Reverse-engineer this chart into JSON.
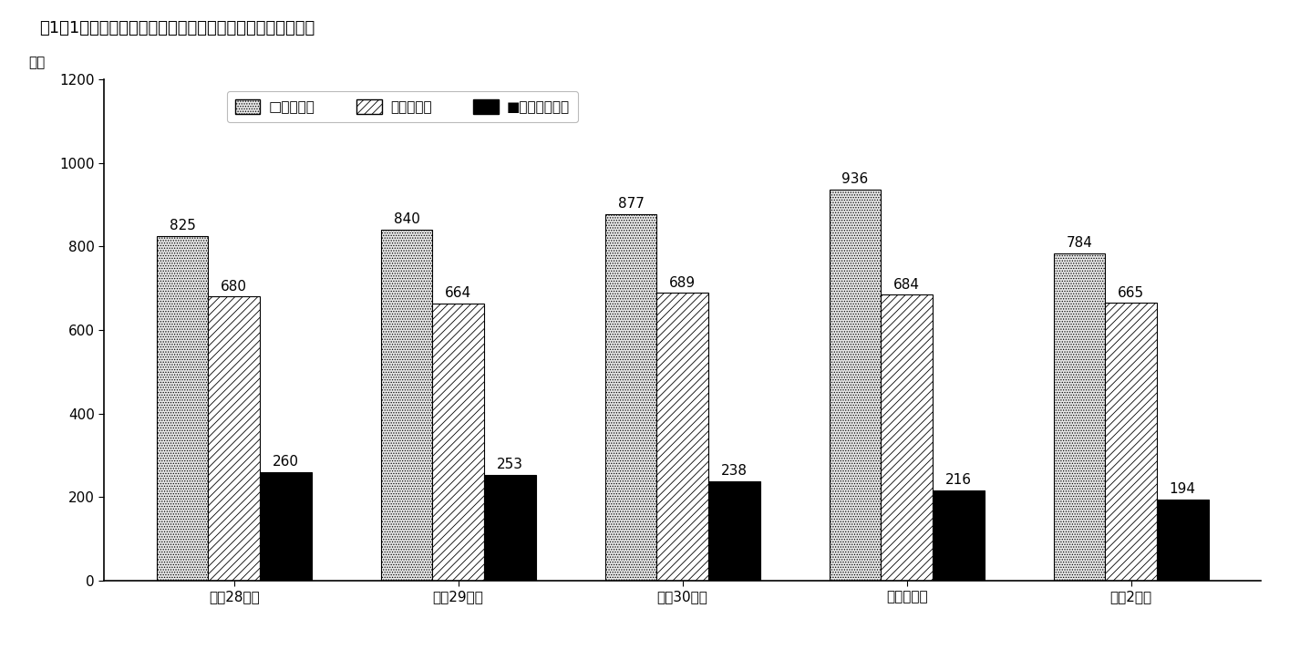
{
  "title": "図1－1　脳・心臓疾患の請求、決定及び支給決定件数の推移",
  "ylabel": "（件",
  "categories": [
    "平成28年度",
    "平成29年度",
    "平成30年度",
    "令和元年度",
    "令和2年度"
  ],
  "series": {
    "請求件数": [
      825,
      840,
      877,
      936,
      784
    ],
    "決定件数": [
      680,
      664,
      689,
      684,
      665
    ],
    "支給決定件数": [
      260,
      253,
      238,
      216,
      194
    ]
  },
  "legend_labels": [
    "□請求件数",
    "図決定件数",
    "■支給決定件数"
  ],
  "ylim": [
    0,
    1200
  ],
  "yticks": [
    0,
    200,
    400,
    600,
    800,
    1000,
    1200
  ],
  "bar_width": 0.23,
  "background_color": "#ffffff",
  "title_fontsize": 13,
  "label_fontsize": 11,
  "tick_fontsize": 11,
  "annotation_fontsize": 11,
  "bar_styles": [
    {
      "facecolor": "#e8e8e8",
      "edgecolor": "#000000",
      "hatch": "......"
    },
    {
      "facecolor": "#ffffff",
      "edgecolor": "#000000",
      "hatch": "////"
    },
    {
      "facecolor": "#000000",
      "edgecolor": "#000000",
      "hatch": "......"
    }
  ],
  "legend_styles": [
    {
      "facecolor": "#e8e8e8",
      "edgecolor": "#000000",
      "hatch": "......"
    },
    {
      "facecolor": "#ffffff",
      "edgecolor": "#000000",
      "hatch": "////"
    },
    {
      "facecolor": "#000000",
      "edgecolor": "#000000",
      "hatch": "......"
    }
  ]
}
